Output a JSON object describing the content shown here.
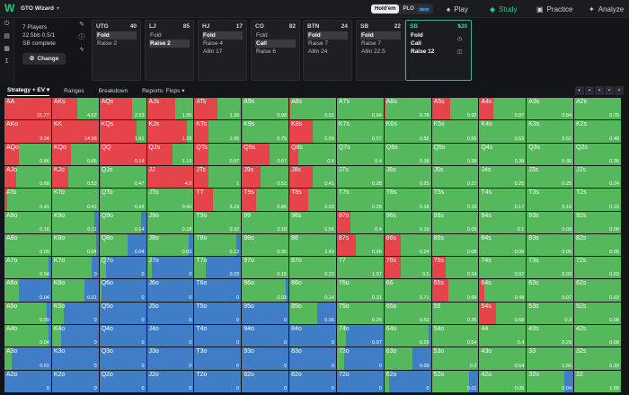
{
  "header": {
    "title": "GTO Wizard",
    "hold_em": "Hold'em",
    "plo": "PLO",
    "new_badge": "NEW",
    "nav": [
      {
        "label": "Play",
        "icon": "spade-icon"
      },
      {
        "label": "Study",
        "icon": "graduation-icon"
      },
      {
        "label": "Practice",
        "icon": "gamepad-icon"
      },
      {
        "label": "Analyze",
        "icon": "bulb-icon"
      }
    ],
    "active_nav": "Study"
  },
  "spot_info": {
    "players": "7 Players",
    "stacks": "22.5bb 0.5/1",
    "status": "SB complete",
    "change_label": "Change"
  },
  "positions": [
    {
      "name": "UTG",
      "stack": "40",
      "actions": [
        "Fold",
        "Raise 2"
      ],
      "selected": "Fold"
    },
    {
      "name": "LJ",
      "stack": "85",
      "actions": [
        "Fold",
        "Raise 2"
      ],
      "selected": "Raise 2"
    },
    {
      "name": "HJ",
      "stack": "17",
      "actions": [
        "Fold",
        "Raise 4",
        "Allin 17"
      ],
      "selected": "Fold"
    },
    {
      "name": "CO",
      "stack": "82",
      "actions": [
        "Fold",
        "Call",
        "Raise 6"
      ],
      "selected": "Call"
    },
    {
      "name": "BTN",
      "stack": "24",
      "actions": [
        "Fold",
        "Raise 7",
        "Allin 24"
      ],
      "selected": "Fold"
    },
    {
      "name": "SB",
      "stack": "22",
      "actions": [
        "Fold",
        "Raise 7",
        "Allin 22.5"
      ],
      "selected": "Fold"
    },
    {
      "name": "SB",
      "stack": "139",
      "actions": [
        "Fold",
        "Call",
        "Raise 12"
      ],
      "selected": "",
      "current": true
    }
  ],
  "tabs": [
    "Strategy + EV",
    "Ranges",
    "Breakdown",
    "Reports: Flops"
  ],
  "active_tab": "Strategy + EV",
  "colors": {
    "raise": "#e5444a",
    "call": "#56b85c",
    "fold": "#3f7ec7"
  },
  "grid": [
    [
      "AA",
      "AKs",
      "AQs",
      "AJs",
      "ATs",
      "A9s",
      "A8s",
      "A7s",
      "A6s",
      "A5s",
      "A4s",
      "A3s",
      "A2s"
    ],
    [
      "AKo",
      "KK",
      "KQs",
      "KJs",
      "KTs",
      "K9s",
      "K8s",
      "K7s",
      "K6s",
      "K5s",
      "K4s",
      "K3s",
      "K2s"
    ],
    [
      "AQo",
      "KQo",
      "QQ",
      "QJs",
      "QTs",
      "Q9s",
      "Q8s",
      "Q7s",
      "Q6s",
      "Q5s",
      "Q4s",
      "Q3s",
      "Q2s"
    ],
    [
      "AJo",
      "KJo",
      "QJo",
      "JJ",
      "JTs",
      "J9s",
      "J8s",
      "J7s",
      "J6s",
      "J5s",
      "J4s",
      "J3s",
      "J2s"
    ],
    [
      "ATo",
      "KTo",
      "QTo",
      "JTo",
      "TT",
      "T9s",
      "T8s",
      "T7s",
      "T6s",
      "T5s",
      "T4s",
      "T3s",
      "T2s"
    ],
    [
      "A9o",
      "K9o",
      "Q9o",
      "J9o",
      "T9o",
      "99",
      "98s",
      "97s",
      "96s",
      "95s",
      "94s",
      "93s",
      "92s"
    ],
    [
      "A8o",
      "K8o",
      "Q8o",
      "J8o",
      "T8o",
      "98o",
      "88",
      "87s",
      "86s",
      "85s",
      "84s",
      "83s",
      "82s"
    ],
    [
      "A7o",
      "K7o",
      "Q7o",
      "J7o",
      "T7o",
      "97o",
      "87o",
      "77",
      "76s",
      "75s",
      "74s",
      "73s",
      "72s"
    ],
    [
      "A6o",
      "K6o",
      "Q6o",
      "J6o",
      "T6o",
      "96o",
      "86o",
      "76o",
      "66",
      "65s",
      "64s",
      "63s",
      "62s"
    ],
    [
      "A5o",
      "K5o",
      "Q5o",
      "J5o",
      "T5o",
      "95o",
      "85o",
      "75o",
      "65o",
      "55",
      "54s",
      "53s",
      "52s"
    ],
    [
      "A4o",
      "K4o",
      "Q4o",
      "J4o",
      "T4o",
      "94o",
      "84o",
      "74o",
      "64o",
      "54o",
      "44",
      "43s",
      "42s"
    ],
    [
      "A3o",
      "K3o",
      "Q3o",
      "J3o",
      "T3o",
      "93o",
      "83o",
      "73o",
      "63o",
      "53o",
      "43o",
      "33",
      "32s"
    ],
    [
      "A2o",
      "K2o",
      "Q2o",
      "J2o",
      "T2o",
      "92o",
      "82o",
      "72o",
      "62o",
      "52o",
      "42o",
      "32o",
      "22"
    ]
  ],
  "ev": [
    [
      "21.77",
      "4.62",
      "2.53",
      "1.56",
      "1.26",
      "0.98",
      "0.91",
      "0.84",
      "0.78",
      "0.92",
      "0.87",
      "0.84",
      "0.75"
    ],
    [
      "3.24",
      "14.98",
      "1.61",
      "1.28",
      "1.05",
      "0.75",
      "0.59",
      "0.57",
      "0.56",
      "0.55",
      "0.53",
      "0.52",
      "0.49"
    ],
    [
      "0.86",
      "0.86",
      "9.14",
      "1.13",
      "0.97",
      "0.67",
      "0.5",
      "0.4",
      "0.38",
      "0.38",
      "0.38",
      "0.36",
      "0.36"
    ],
    [
      "0.68",
      "0.53",
      "0.47",
      "4.9",
      "1",
      "0.51",
      "0.41",
      "0.28",
      "0.25",
      "0.27",
      "0.25",
      "0.25",
      "0.24"
    ],
    [
      "0.41",
      "0.41",
      "0.43",
      "0.43",
      "3.29",
      "0.85",
      "0.63",
      "0.29",
      "0.18",
      "0.15",
      "0.17",
      "0.16",
      "0.15"
    ],
    [
      "0.16",
      "0.11",
      "0.14",
      "0.18",
      "0.32",
      "2.18",
      "0.56",
      "0.4",
      "0.19",
      "0.09",
      "0.1",
      "0.09",
      "0.08"
    ],
    [
      "0.09",
      "0.04",
      "0.04",
      "0.03",
      "0.12",
      "0.35",
      "2.42",
      "0.66",
      "0.24",
      "0.08",
      "0.06",
      "0.05",
      "0.05"
    ],
    [
      "0.04",
      "0",
      "0",
      "0",
      "0.03",
      "0.15",
      "0.23",
      "1.97",
      "0.5",
      "0.34",
      "0.07",
      "0.03",
      "0.03"
    ],
    [
      "0.04",
      "0.01",
      "0",
      "0",
      "0",
      "0.03",
      "0.14",
      "0.31",
      "0.71",
      "0.69",
      "0.48",
      "0.07",
      "0.03"
    ],
    [
      "0.09",
      "0",
      "0",
      "0",
      "0",
      "0",
      "0.06",
      "0.25",
      "0.52",
      "0.35",
      "0.68",
      "0.3",
      "0.08"
    ],
    [
      "0.04",
      "0",
      "0",
      "0",
      "0",
      "0",
      "0",
      "0.07",
      "0.29",
      "0.54",
      "0.4",
      "0.29",
      "0.08"
    ],
    [
      "0.01",
      "0",
      "0",
      "0",
      "0",
      "0",
      "0",
      "0",
      "0.09",
      "0.2",
      "0.54",
      "1.65",
      "0.33"
    ],
    [
      "0",
      "0",
      "0",
      "0",
      "0",
      "0",
      "0",
      "0",
      "0",
      "0.01",
      "0.05",
      "0.04",
      "1.59"
    ]
  ],
  "strategy": [
    [
      [
        1,
        0,
        0
      ],
      [
        0.55,
        0.45,
        0
      ],
      [
        0.7,
        0.3,
        0
      ],
      [
        0.6,
        0.4,
        0
      ],
      [
        0.5,
        0.5,
        0
      ],
      [
        0.02,
        0.98,
        0
      ],
      [
        0.02,
        0.98,
        0
      ],
      [
        0,
        1,
        0
      ],
      [
        0.02,
        0.98,
        0
      ],
      [
        0.4,
        0.6,
        0
      ],
      [
        0.3,
        0.7,
        0
      ],
      [
        0,
        1,
        0
      ],
      [
        0,
        1,
        0
      ]
    ],
    [
      [
        1,
        0,
        0
      ],
      [
        1,
        0,
        0
      ],
      [
        0.8,
        0.2,
        0
      ],
      [
        0.85,
        0.15,
        0
      ],
      [
        0.3,
        0.7,
        0
      ],
      [
        0.02,
        0.98,
        0
      ],
      [
        0.5,
        0.5,
        0
      ],
      [
        0,
        1,
        0
      ],
      [
        0,
        1,
        0
      ],
      [
        0,
        1,
        0
      ],
      [
        0,
        1,
        0
      ],
      [
        0,
        1,
        0
      ],
      [
        0,
        1,
        0
      ]
    ],
    [
      [
        0.3,
        0.7,
        0
      ],
      [
        0.4,
        0.6,
        0
      ],
      [
        1,
        0,
        0
      ],
      [
        0.55,
        0.45,
        0
      ],
      [
        0.3,
        0.7,
        0
      ],
      [
        0.6,
        0.4,
        0
      ],
      [
        0.2,
        0.8,
        0
      ],
      [
        0,
        1,
        0
      ],
      [
        0,
        1,
        0
      ],
      [
        0,
        1,
        0
      ],
      [
        0,
        1,
        0
      ],
      [
        0,
        1,
        0
      ],
      [
        0,
        1,
        0
      ]
    ],
    [
      [
        0.25,
        0.75,
        0
      ],
      [
        0.35,
        0.65,
        0
      ],
      [
        0.02,
        0.98,
        0
      ],
      [
        1,
        0,
        0
      ],
      [
        0.3,
        0.7,
        0
      ],
      [
        0.4,
        0.6,
        0
      ],
      [
        0.5,
        0.5,
        0
      ],
      [
        0,
        1,
        0
      ],
      [
        0,
        1,
        0
      ],
      [
        0,
        1,
        0
      ],
      [
        0,
        1,
        0
      ],
      [
        0,
        1,
        0
      ],
      [
        0,
        1,
        0
      ]
    ],
    [
      [
        0.05,
        0.95,
        0
      ],
      [
        0,
        1,
        0
      ],
      [
        0,
        1,
        0
      ],
      [
        0,
        1,
        0
      ],
      [
        0.4,
        0.6,
        0
      ],
      [
        0.3,
        0.7,
        0
      ],
      [
        0.4,
        0.6,
        0
      ],
      [
        0.02,
        0.98,
        0
      ],
      [
        0,
        1,
        0
      ],
      [
        0,
        1,
        0
      ],
      [
        0,
        1,
        0
      ],
      [
        0,
        1,
        0
      ],
      [
        0,
        1,
        0
      ]
    ],
    [
      [
        0,
        1,
        0
      ],
      [
        0,
        0.9,
        0.1
      ],
      [
        0,
        0.9,
        0.1
      ],
      [
        0,
        1,
        0
      ],
      [
        0,
        1,
        0
      ],
      [
        0,
        1,
        0
      ],
      [
        0,
        1,
        0
      ],
      [
        0.3,
        0.7,
        0
      ],
      [
        0,
        1,
        0
      ],
      [
        0,
        1,
        0
      ],
      [
        0,
        1,
        0
      ],
      [
        0,
        1,
        0
      ],
      [
        0,
        1,
        0
      ]
    ],
    [
      [
        0,
        1,
        0
      ],
      [
        0,
        0.95,
        0.05
      ],
      [
        0,
        0.6,
        0.4
      ],
      [
        0,
        0.9,
        0.1
      ],
      [
        0,
        0.9,
        0.1
      ],
      [
        0,
        1,
        0
      ],
      [
        0,
        1,
        0
      ],
      [
        0.4,
        0.6,
        0
      ],
      [
        0.35,
        0.65,
        0
      ],
      [
        0,
        1,
        0
      ],
      [
        0,
        1,
        0
      ],
      [
        0,
        1,
        0
      ],
      [
        0,
        1,
        0
      ]
    ],
    [
      [
        0,
        0.95,
        0.05
      ],
      [
        0,
        0.85,
        0.15
      ],
      [
        0,
        0.15,
        0.85
      ],
      [
        0,
        0.1,
        0.9
      ],
      [
        0,
        0.25,
        0.75
      ],
      [
        0,
        1,
        0
      ],
      [
        0,
        1,
        0
      ],
      [
        0,
        1,
        0
      ],
      [
        0.35,
        0.65,
        0
      ],
      [
        0.3,
        0.7,
        0
      ],
      [
        0,
        1,
        0
      ],
      [
        0,
        1,
        0
      ],
      [
        0,
        1,
        0
      ]
    ],
    [
      [
        0,
        0.3,
        0.7
      ],
      [
        0,
        0.7,
        0.3
      ],
      [
        0,
        0.05,
        0.95
      ],
      [
        0,
        0,
        1
      ],
      [
        0,
        0,
        1
      ],
      [
        0,
        0.95,
        0.05
      ],
      [
        0,
        1,
        0
      ],
      [
        0,
        1,
        0
      ],
      [
        0,
        1,
        0
      ],
      [
        0.35,
        0.65,
        0
      ],
      [
        0.1,
        0.9,
        0
      ],
      [
        0,
        1,
        0
      ],
      [
        0,
        1,
        0
      ]
    ],
    [
      [
        0,
        0.9,
        0.1
      ],
      [
        0,
        0.25,
        0.75
      ],
      [
        0,
        0,
        1
      ],
      [
        0,
        0,
        1
      ],
      [
        0,
        0,
        1
      ],
      [
        0,
        0,
        1
      ],
      [
        0,
        0.6,
        0.4
      ],
      [
        0,
        1,
        0
      ],
      [
        0,
        1,
        0
      ],
      [
        0,
        1,
        0
      ],
      [
        0.35,
        0.65,
        0
      ],
      [
        0,
        1,
        0
      ],
      [
        0,
        1,
        0
      ]
    ],
    [
      [
        0,
        0.95,
        0.05
      ],
      [
        0,
        0.2,
        0.8
      ],
      [
        0,
        0,
        1
      ],
      [
        0,
        0,
        1
      ],
      [
        0,
        0,
        1
      ],
      [
        0,
        0,
        1
      ],
      [
        0,
        0,
        1
      ],
      [
        0,
        0.2,
        0.8
      ],
      [
        0,
        0.95,
        0.05
      ],
      [
        0,
        1,
        0
      ],
      [
        0,
        1,
        0
      ],
      [
        0,
        1,
        0
      ],
      [
        0,
        1,
        0
      ]
    ],
    [
      [
        0,
        0.15,
        0.85
      ],
      [
        0,
        0,
        1
      ],
      [
        0,
        0,
        1
      ],
      [
        0,
        0,
        1
      ],
      [
        0,
        0,
        1
      ],
      [
        0,
        0,
        1
      ],
      [
        0,
        0,
        1
      ],
      [
        0,
        0.15,
        0.85
      ],
      [
        0,
        0.6,
        0.4
      ],
      [
        0,
        1,
        0
      ],
      [
        0,
        1,
        0
      ],
      [
        0,
        1,
        0
      ],
      [
        0,
        1,
        0
      ]
    ],
    [
      [
        0,
        0,
        1
      ],
      [
        0,
        0,
        1
      ],
      [
        0,
        0,
        1
      ],
      [
        0,
        0,
        1
      ],
      [
        0,
        0,
        1
      ],
      [
        0,
        0,
        1
      ],
      [
        0,
        0,
        1
      ],
      [
        0,
        0,
        1
      ],
      [
        0,
        0.1,
        0.9
      ],
      [
        0,
        0.8,
        0.2
      ],
      [
        0,
        1,
        0
      ],
      [
        0,
        0.8,
        0.2
      ],
      [
        0,
        1,
        0
      ]
    ]
  ]
}
